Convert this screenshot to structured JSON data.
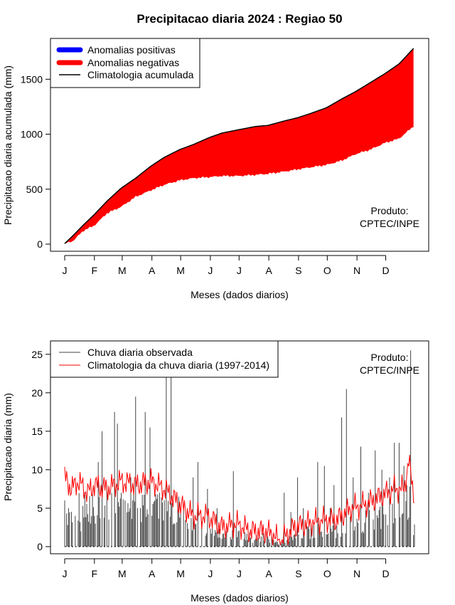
{
  "title": "Precipitacao diaria 2024 : Regiao 50",
  "months": [
    "J",
    "F",
    "M",
    "A",
    "M",
    "J",
    "J",
    "A",
    "S",
    "O",
    "N",
    "D"
  ],
  "colors": {
    "positive": "#0000ff",
    "negative": "#ff0000",
    "climatology": "#000000",
    "observed": "#444444",
    "daily_clim": "#ff0000"
  },
  "chart_data": [
    {
      "type": "area",
      "xlabel": "Meses (dados diarios)",
      "ylabel": "Precipitacao diaria acumulada (mm)",
      "ylim": [
        0,
        1800
      ],
      "yticks": [
        "0",
        "500",
        "1000",
        "1500"
      ],
      "legend_position": "top-left",
      "legend": [
        "Anomalias positivas",
        "Anomalias negativas",
        "Climatologia acumulada"
      ],
      "annotation": [
        "Produto:",
        "CPTEC/INPE"
      ],
      "x": [
        1,
        10,
        20,
        32,
        45,
        60,
        75,
        91,
        105,
        121,
        135,
        152,
        165,
        182,
        200,
        213,
        230,
        244,
        258,
        274,
        290,
        305,
        320,
        335,
        350,
        366
      ],
      "series": [
        {
          "name": "Climatologia acumulada",
          "values": [
            5,
            80,
            170,
            270,
            390,
            510,
            600,
            710,
            790,
            860,
            905,
            970,
            1010,
            1040,
            1070,
            1080,
            1120,
            1150,
            1190,
            1240,
            1320,
            1390,
            1470,
            1550,
            1640,
            1790
          ]
        },
        {
          "name": "Observada",
          "values": [
            5,
            30,
            120,
            170,
            280,
            340,
            430,
            490,
            540,
            580,
            600,
            610,
            620,
            620,
            630,
            640,
            660,
            680,
            700,
            720,
            760,
            820,
            860,
            920,
            960,
            1080
          ]
        }
      ]
    },
    {
      "type": "line",
      "xlabel": "Meses (dados diarios)",
      "ylabel": "Precipitacao diaria (mm)",
      "ylim": [
        0,
        26
      ],
      "yticks": [
        "0",
        "5",
        "10",
        "15",
        "20",
        "25"
      ],
      "legend_position": "top-left",
      "legend": [
        "Chuva diaria observada",
        "Climatologia da chuva diaria (1997-2014)"
      ],
      "annotation": [
        "Produto:",
        "CPTEC/INPE"
      ],
      "clim_x": [
        1,
        8,
        15,
        25,
        32,
        45,
        60,
        75,
        91,
        105,
        121,
        135,
        150,
        165,
        180,
        195,
        210,
        220,
        225,
        240,
        255,
        270,
        285,
        300,
        315,
        330,
        345,
        355,
        360,
        366
      ],
      "clim_values": [
        9.0,
        7.5,
        8.5,
        7.0,
        8.0,
        7.5,
        8.5,
        8.0,
        8.5,
        7.5,
        5.5,
        4.0,
        4.0,
        2.5,
        3.0,
        2.0,
        2.0,
        1.5,
        0.5,
        2.5,
        3.0,
        3.5,
        3.5,
        5.0,
        5.5,
        6.5,
        7.5,
        7.5,
        11.0,
        6.5
      ],
      "obs_x": [
        1,
        5,
        12,
        18,
        22,
        28,
        32,
        36,
        40,
        45,
        50,
        53,
        56,
        60,
        64,
        70,
        75,
        80,
        85,
        90,
        95,
        100,
        107,
        112,
        120,
        125,
        135,
        140,
        150,
        160,
        170,
        177,
        182,
        188,
        197,
        215,
        230,
        237,
        244,
        250,
        258,
        265,
        272,
        278,
        282,
        290,
        295,
        302,
        310,
        318,
        325,
        332,
        340,
        345,
        350,
        355,
        358,
        362,
        365
      ],
      "obs_values": [
        6.0,
        5.0,
        4.0,
        2.0,
        7.0,
        3.0,
        4.0,
        11.0,
        15.0,
        8.0,
        7.0,
        17.5,
        16.0,
        7.0,
        6.0,
        9.0,
        19.5,
        5.0,
        17.5,
        15.5,
        6.0,
        7.0,
        22.0,
        22.0,
        6.5,
        5.0,
        9.0,
        11.0,
        7.5,
        5.0,
        2.0,
        9.8,
        2.0,
        1.0,
        0.5,
        0.5,
        7.0,
        4.5,
        9.0,
        5.0,
        3.0,
        11.0,
        10.5,
        5.0,
        8.0,
        16.8,
        20.5,
        9.0,
        13.0,
        7.0,
        12.5,
        10.0,
        9.0,
        13.5,
        13.5,
        10.5,
        8.0,
        25.5,
        1.5
      ]
    }
  ]
}
